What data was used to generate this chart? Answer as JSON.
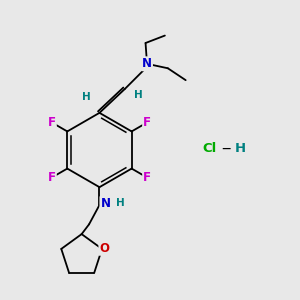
{
  "background_color": "#e8e8e8",
  "fig_size": [
    3.0,
    3.0
  ],
  "dpi": 100,
  "atom_colors": {
    "N": "#0000cc",
    "O": "#cc0000",
    "F": "#cc00cc",
    "H": "#008080",
    "C": "#000000",
    "Cl": "#00aa00"
  },
  "bond_color": "#000000",
  "bond_width": 1.3,
  "font_size_atom": 8.5,
  "font_size_small": 7.5
}
